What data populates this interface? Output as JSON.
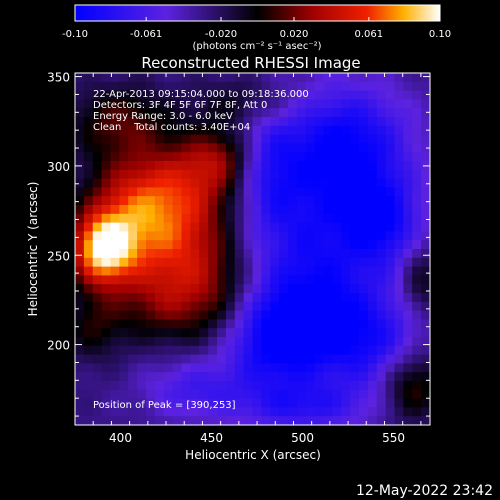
{
  "chart_data": {
    "type": "heatmap",
    "title": "Reconstructed RHESSI Image",
    "xlabel": "Heliocentric X (arcsec)",
    "ylabel": "Heliocentric Y (arcsec)",
    "xlim": [
      375,
      570
    ],
    "ylim": [
      155,
      352
    ],
    "x_ticks": [
      400,
      450,
      500,
      550
    ],
    "y_ticks": [
      200,
      250,
      300,
      350
    ],
    "colorbar": {
      "range": [
        -0.1,
        0.1
      ],
      "ticks": [
        "-0.10",
        "-0.061",
        "-0.020",
        "0.020",
        "0.061",
        "0.10"
      ],
      "units": "(photons cm⁻² s⁻¹ asec⁻²)"
    },
    "annotations": [
      "22-Apr-2013 09:15:04.000 to 09:18:36.000",
      "Detectors: 3F 4F 5F 6F 7F 8F, Att 0",
      "Energy Range: 3.0 - 6.0 keV",
      "Clean    Total counts: 3.40E+04"
    ],
    "peak_label": "Position of Peak = [390,253]",
    "peak": {
      "x": 390,
      "y": 253,
      "value": 0.1
    },
    "features": [
      {
        "x": 390,
        "y": 253,
        "sx": 12,
        "sy": 14,
        "a": 0.11
      },
      {
        "x": 405,
        "y": 275,
        "sx": 18,
        "sy": 22,
        "a": 0.06
      },
      {
        "x": 435,
        "y": 285,
        "sx": 22,
        "sy": 18,
        "a": 0.065
      },
      {
        "x": 455,
        "y": 305,
        "sx": 15,
        "sy": 12,
        "a": 0.045
      },
      {
        "x": 430,
        "y": 255,
        "sx": 20,
        "sy": 16,
        "a": 0.045
      },
      {
        "x": 450,
        "y": 230,
        "sx": 18,
        "sy": 20,
        "a": 0.045
      },
      {
        "x": 420,
        "y": 225,
        "sx": 18,
        "sy": 16,
        "a": 0.04
      },
      {
        "x": 400,
        "y": 325,
        "sx": 20,
        "sy": 14,
        "a": 0.04
      },
      {
        "x": 385,
        "y": 210,
        "sx": 12,
        "sy": 14,
        "a": 0.03
      },
      {
        "x": 470,
        "y": 335,
        "sx": 20,
        "sy": 10,
        "a": 0.03
      },
      {
        "x": 560,
        "y": 178,
        "sx": 12,
        "sy": 14,
        "a": 0.05
      },
      {
        "x": 565,
        "y": 235,
        "sx": 8,
        "sy": 14,
        "a": 0.035
      },
      {
        "x": 440,
        "y": 175,
        "sx": 20,
        "sy": 12,
        "a": -0.035
      },
      {
        "x": 480,
        "y": 200,
        "sx": 18,
        "sy": 20,
        "a": -0.04
      },
      {
        "x": 510,
        "y": 265,
        "sx": 30,
        "sy": 40,
        "a": -0.055
      },
      {
        "x": 525,
        "y": 315,
        "sx": 25,
        "sy": 22,
        "a": -0.05
      },
      {
        "x": 500,
        "y": 210,
        "sx": 22,
        "sy": 22,
        "a": -0.05
      },
      {
        "x": 540,
        "y": 200,
        "sx": 20,
        "sy": 20,
        "a": -0.045
      },
      {
        "x": 545,
        "y": 270,
        "sx": 14,
        "sy": 18,
        "a": -0.045
      },
      {
        "x": 500,
        "y": 165,
        "sx": 25,
        "sy": 10,
        "a": -0.04
      },
      {
        "x": 480,
        "y": 300,
        "sx": 12,
        "sy": 25,
        "a": -0.035
      }
    ]
  },
  "footer": {
    "timestamp": "12-May-2022 23:42"
  }
}
